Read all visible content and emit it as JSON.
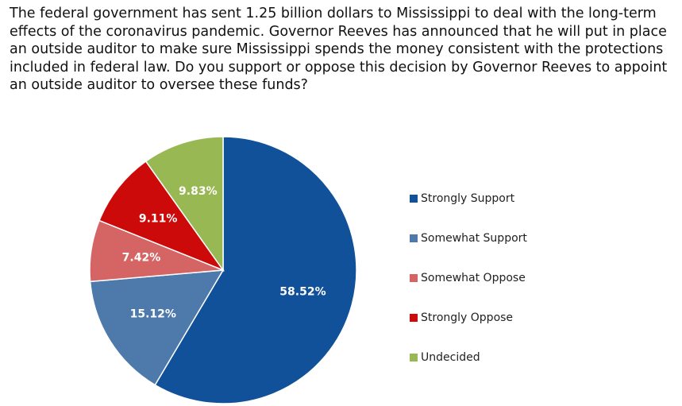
{
  "chart_data": {
    "type": "pie",
    "title": "The federal government has sent 1.25 billion dollars to Mississippi to deal with the long-term effects of the coronavirus pandemic. Governor Reeves has announced that he will put in place an outside auditor to make sure Mississippi spends the money consistent with the protections included in federal law. Do you support or oppose this decision by Governor Reeves to appoint an outside auditor to oversee these funds?",
    "categories": [
      "Strongly Support",
      "Somewhat Support",
      "Somewhat Oppose",
      "Strongly Oppose",
      "Undecided"
    ],
    "values": [
      58.52,
      15.12,
      7.42,
      9.11,
      9.83
    ],
    "value_labels": [
      "58.52%",
      "15.12%",
      "7.42%",
      "9.11%",
      "9.83%"
    ],
    "colors": [
      "#11519a",
      "#4d7aab",
      "#d56565",
      "#cc0a0a",
      "#97b852"
    ],
    "legend": "right"
  }
}
